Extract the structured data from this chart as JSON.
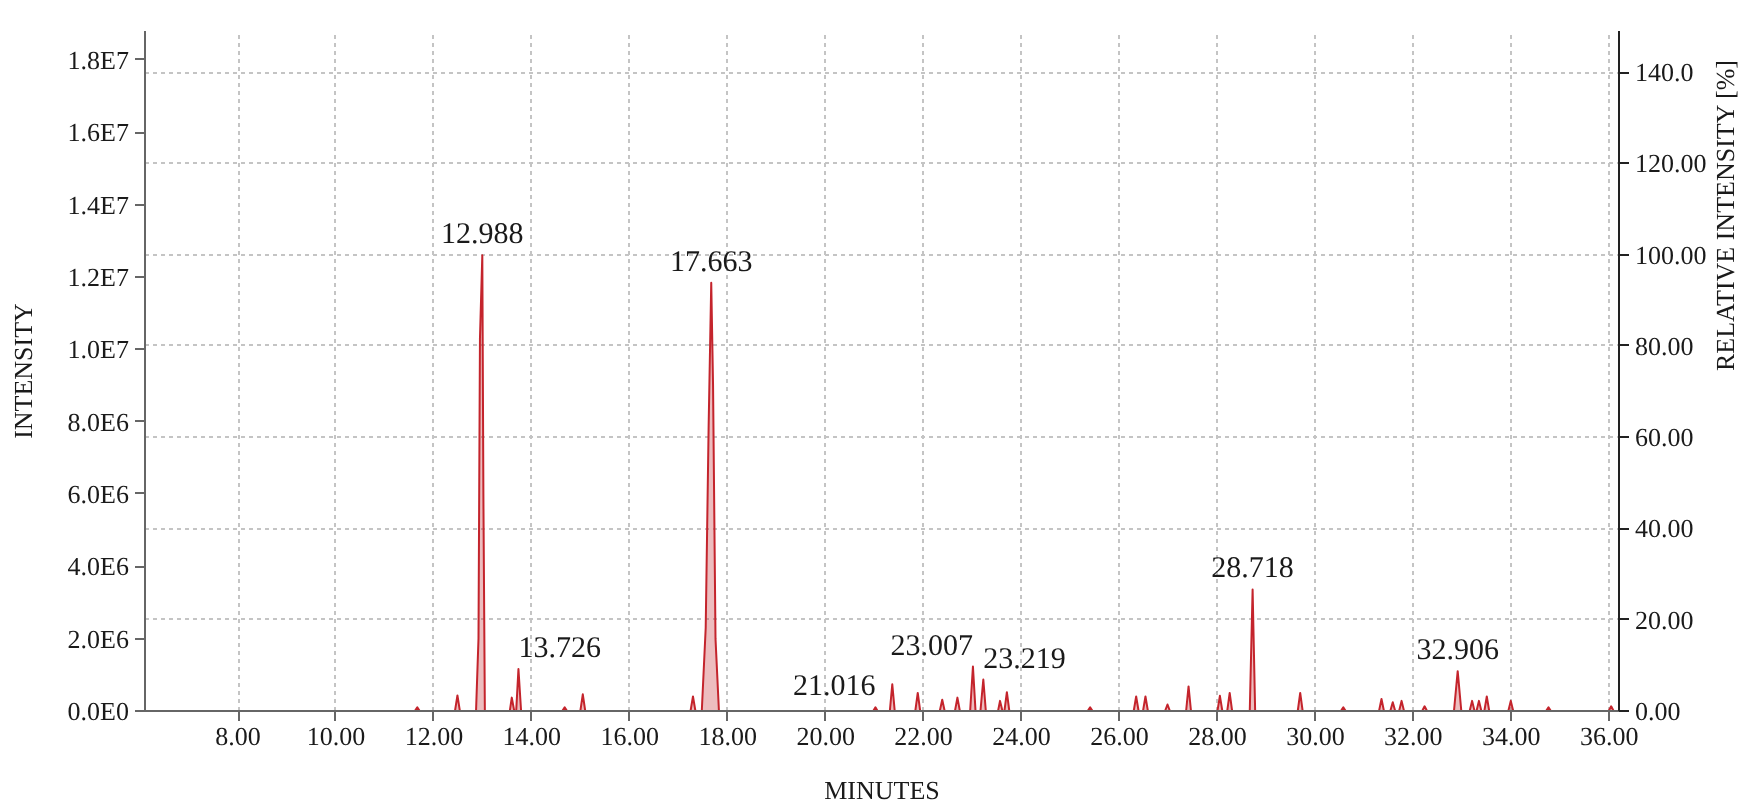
{
  "chart_data": {
    "type": "area",
    "xlabel": "MINUTES",
    "ylabel": "INTENSITY",
    "y2label": "RELATIVE INTENSITY [%]",
    "color": "#c4242c",
    "grid": true,
    "xlim": [
      6.1,
      36.2
    ],
    "ylim": [
      0,
      18800000
    ],
    "y2lim": [
      0,
      149
    ],
    "xticks": [
      {
        "value": 8,
        "label": "8.00"
      },
      {
        "value": 10,
        "label": "10.00"
      },
      {
        "value": 12,
        "label": "12.00"
      },
      {
        "value": 14,
        "label": "14.00"
      },
      {
        "value": 16,
        "label": "16.00"
      },
      {
        "value": 18,
        "label": "18.00"
      },
      {
        "value": 20,
        "label": "20.00"
      },
      {
        "value": 22,
        "label": "22.00"
      },
      {
        "value": 24,
        "label": "24.00"
      },
      {
        "value": 26,
        "label": "26.00"
      },
      {
        "value": 28,
        "label": "28.00"
      },
      {
        "value": 30,
        "label": "30.00"
      },
      {
        "value": 32,
        "label": "32.00"
      },
      {
        "value": 34,
        "label": "34.00"
      },
      {
        "value": 36,
        "label": "36.00"
      }
    ],
    "yticks": [
      {
        "value": 0,
        "label": "0.0E0"
      },
      {
        "value": 2000000,
        "label": "2.0E6"
      },
      {
        "value": 4000000,
        "label": "4.0E6"
      },
      {
        "value": 6000000,
        "label": "6.0E6"
      },
      {
        "value": 8000000,
        "label": "8.0E6"
      },
      {
        "value": 10000000,
        "label": "1.0E7"
      },
      {
        "value": 12000000,
        "label": "1.2E7"
      },
      {
        "value": 14000000,
        "label": "1.4E7"
      },
      {
        "value": 16000000,
        "label": "1.6E7"
      },
      {
        "value": 18000000,
        "label": "1.8E7"
      }
    ],
    "y2ticks": [
      {
        "value": 0,
        "label": "0.00"
      },
      {
        "value": 20,
        "label": "20.00"
      },
      {
        "value": 40,
        "label": "40.00"
      },
      {
        "value": 60,
        "label": "60.00"
      },
      {
        "value": 80,
        "label": "80.00"
      },
      {
        "value": 100,
        "label": "100.00"
      },
      {
        "value": 120,
        "label": "120.00"
      },
      {
        "value": 140,
        "label": "140.0"
      }
    ],
    "x": [
      6.2,
      11.61,
      11.66,
      11.71,
      12.43,
      12.48,
      12.53,
      12.86,
      12.91,
      12.94,
      12.988,
      13.01,
      13.04,
      13.55,
      13.59,
      13.64,
      13.68,
      13.726,
      13.78,
      14.62,
      14.67,
      14.72,
      14.99,
      15.04,
      15.09,
      17.24,
      17.29,
      17.34,
      17.47,
      17.55,
      17.61,
      17.663,
      17.7,
      17.75,
      17.82,
      20.97,
      21.016,
      21.06,
      21.31,
      21.36,
      21.41,
      21.83,
      21.88,
      21.93,
      22.33,
      22.38,
      22.43,
      22.64,
      22.69,
      22.74,
      22.95,
      23.007,
      23.06,
      23.16,
      23.219,
      23.27,
      23.52,
      23.56,
      23.61,
      23.65,
      23.7,
      23.75,
      25.35,
      25.4,
      25.45,
      26.29,
      26.34,
      26.39,
      26.48,
      26.53,
      26.58,
      26.93,
      26.98,
      27.03,
      27.36,
      27.41,
      27.46,
      28.0,
      28.05,
      28.1,
      28.2,
      28.25,
      28.3,
      28.66,
      28.718,
      28.77,
      29.64,
      29.69,
      29.74,
      30.52,
      30.57,
      30.62,
      31.3,
      31.35,
      31.4,
      31.53,
      31.58,
      31.63,
      31.71,
      31.76,
      31.81,
      32.18,
      32.23,
      32.28,
      32.83,
      32.906,
      32.98,
      33.15,
      33.2,
      33.25,
      33.29,
      33.34,
      33.39,
      33.45,
      33.5,
      33.55,
      33.94,
      33.99,
      34.04,
      34.71,
      34.76,
      34.81,
      35.99,
      36.04,
      36.09,
      36.2
    ],
    "values": [
      0,
      0,
      100000,
      0,
      0,
      430000,
      0,
      0,
      2000000,
      10300000,
      12600000,
      6000000,
      0,
      0,
      370000,
      0,
      0,
      1160000,
      0,
      0,
      100000,
      0,
      0,
      460000,
      0,
      0,
      400000,
      0,
      0,
      2300000,
      7900000,
      11840000,
      9000000,
      2000000,
      0,
      0,
      100000,
      0,
      0,
      740000,
      0,
      0,
      500000,
      0,
      0,
      310000,
      0,
      0,
      370000,
      0,
      0,
      1230000,
      0,
      0,
      870000,
      0,
      0,
      280000,
      0,
      0,
      520000,
      0,
      0,
      100000,
      0,
      0,
      400000,
      0,
      0,
      400000,
      0,
      0,
      180000,
      0,
      0,
      680000,
      0,
      0,
      420000,
      0,
      0,
      500000,
      0,
      0,
      3360000,
      0,
      0,
      500000,
      0,
      0,
      100000,
      0,
      0,
      330000,
      0,
      0,
      240000,
      0,
      0,
      280000,
      0,
      0,
      130000,
      0,
      0,
      1100000,
      0,
      0,
      280000,
      0,
      0,
      280000,
      0,
      0,
      400000,
      0,
      0,
      280000,
      0,
      0,
      100000,
      0,
      0,
      130000,
      0,
      0
    ],
    "annotations": [
      {
        "text": "12.988",
        "x": 12.988,
        "y": 12600000
      },
      {
        "text": "13.726",
        "x": 13.726,
        "y": 1160000
      },
      {
        "text": "17.663",
        "x": 17.663,
        "y": 11840000
      },
      {
        "text": "21.016",
        "x": 21.016,
        "y": 100000
      },
      {
        "text": "23.007",
        "x": 23.007,
        "y": 1230000
      },
      {
        "text": "23.219",
        "x": 23.219,
        "y": 870000
      },
      {
        "text": "28.718",
        "x": 28.718,
        "y": 3360000
      },
      {
        "text": "32.906",
        "x": 32.906,
        "y": 1100000
      }
    ]
  }
}
